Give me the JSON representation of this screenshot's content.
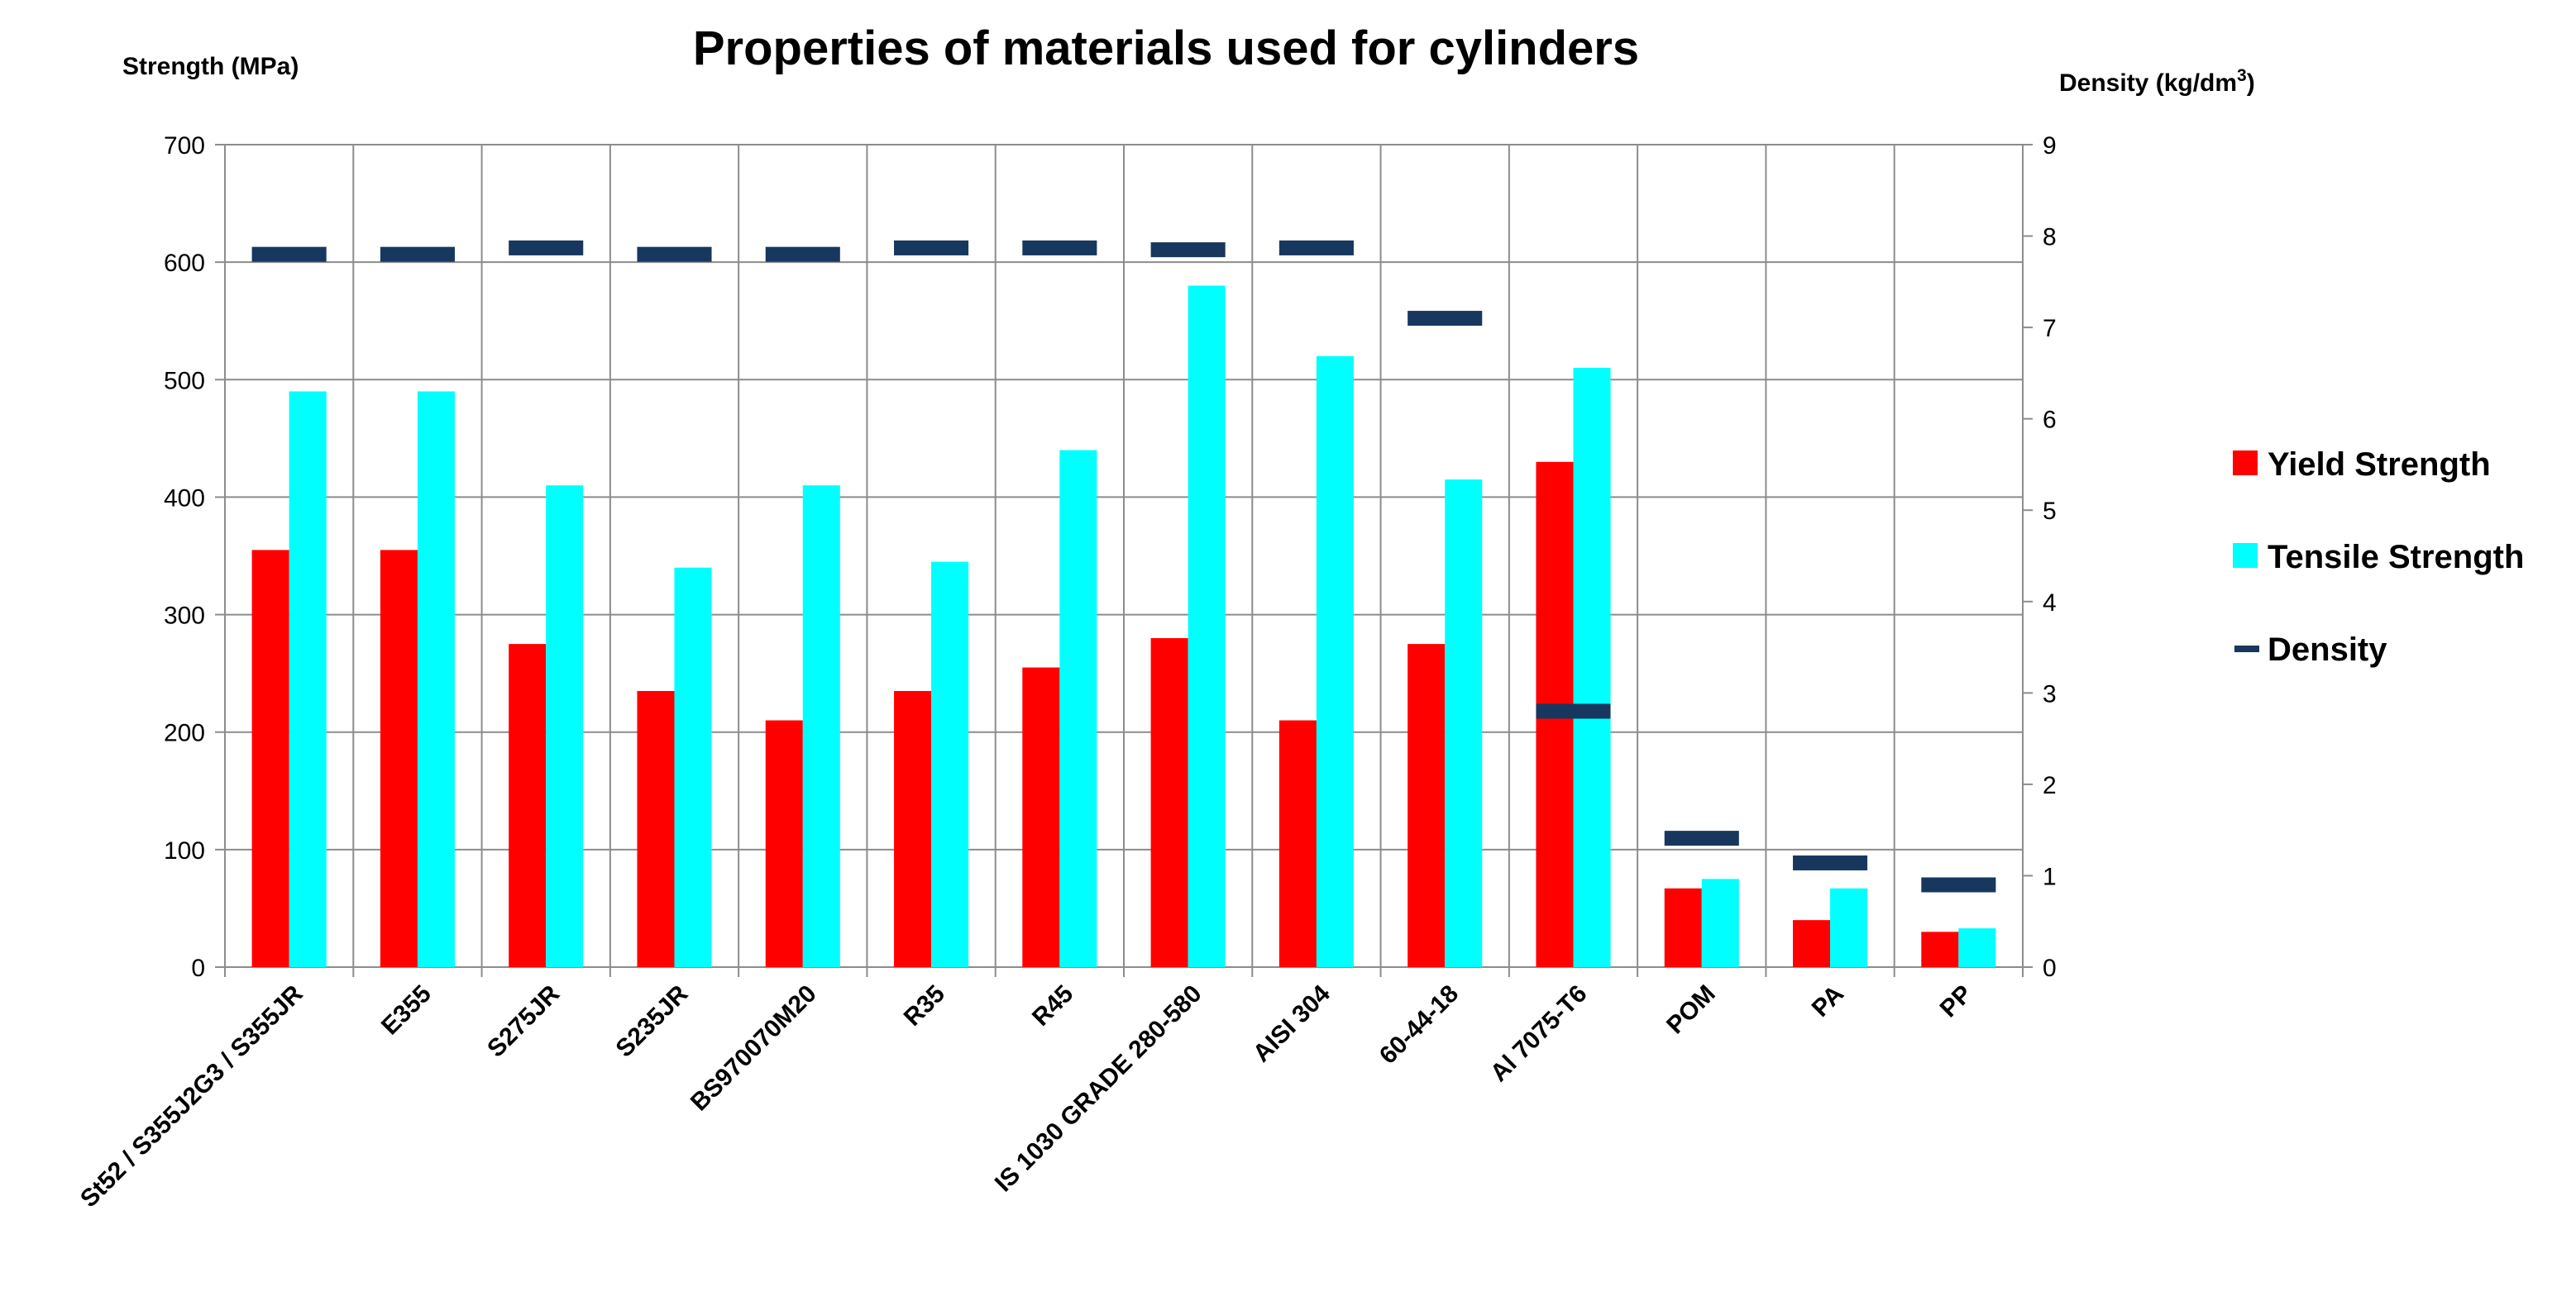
{
  "chart_data": {
    "type": "bar",
    "title": "Properties of materials used for cylinders",
    "ylabel": "Strength (MPa)",
    "y2label": "Density (kg/dm",
    "y2label_superscript": "3",
    "y2label_suffix": ")",
    "ylim": [
      0,
      700
    ],
    "y2lim": [
      0,
      9
    ],
    "yticks": [
      "0",
      "100",
      "200",
      "300",
      "400",
      "500",
      "600",
      "700"
    ],
    "y2ticks": [
      "0",
      "1",
      "2",
      "3",
      "4",
      "5",
      "6",
      "7",
      "8",
      "9"
    ],
    "grid": true,
    "legend_position": "right",
    "categories": [
      "St52 / S355J2G3 / S355JR",
      "E355",
      "S275JR",
      "S235JR",
      "BS970070M20",
      "R35",
      "R45",
      "IS 1030 GRADE 280-580",
      "AISI 304",
      "60-44-18",
      "Al 7075-T6",
      "POM",
      "PA",
      "PP"
    ],
    "series": [
      {
        "name": "Yield Strength",
        "type": "bar",
        "axis": "left",
        "color": "#ff0000",
        "values": [
          355,
          355,
          275,
          235,
          210,
          235,
          255,
          280,
          210,
          275,
          430,
          67,
          40,
          30
        ]
      },
      {
        "name": "Tensile Strength",
        "type": "bar",
        "axis": "left",
        "color": "#00ffff",
        "values": [
          490,
          490,
          410,
          340,
          410,
          345,
          440,
          580,
          520,
          415,
          510,
          75,
          67,
          33
        ]
      },
      {
        "name": "Density",
        "type": "marker",
        "axis": "right",
        "color": "#17375e",
        "values": [
          7.8,
          7.8,
          7.87,
          7.8,
          7.8,
          7.87,
          7.87,
          7.85,
          7.87,
          7.1,
          2.8,
          1.41,
          1.14,
          0.9
        ]
      }
    ]
  }
}
